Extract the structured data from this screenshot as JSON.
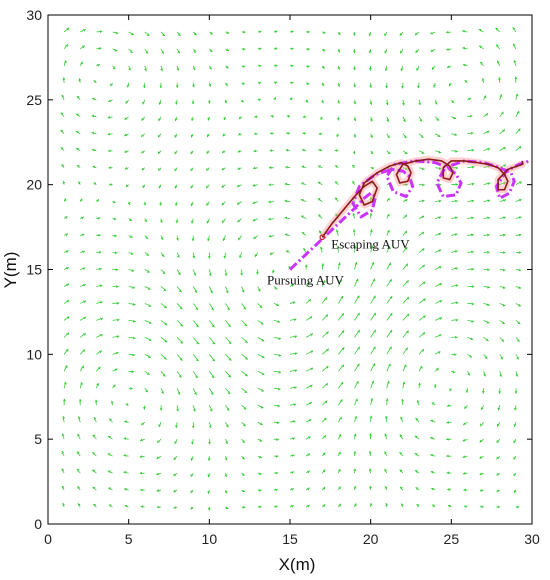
{
  "chart_data": {
    "type": "line",
    "title": "",
    "xlabel": "X(m)",
    "ylabel": "Y(m)",
    "xlim": [
      0,
      30
    ],
    "ylim": [
      0,
      30
    ],
    "xticks": [
      "0",
      "5",
      "10",
      "15",
      "20",
      "25",
      "30"
    ],
    "yticks": [
      "0",
      "5",
      "10",
      "15",
      "20",
      "25",
      "30"
    ],
    "grid": false,
    "colors": {
      "flow_field": "#33cc33",
      "pursuer": "#cc33ff",
      "escaper": "#8b1a1a",
      "axes": "#000000"
    },
    "series": [
      {
        "name": "Pursuing AUV",
        "style": "dash-dot",
        "x": [
          15.0,
          16.0,
          17.0,
          18.0,
          19.0,
          19.6,
          20.0,
          20.3,
          20.1,
          19.4,
          18.9,
          19.3,
          20.3,
          21.3,
          22.0,
          22.4,
          22.6,
          22.2,
          21.4,
          21.0,
          21.5,
          22.8,
          24.0,
          24.8,
          25.3,
          25.6,
          25.3,
          24.5,
          24.1,
          24.6,
          25.8,
          27.0,
          28.0,
          28.7,
          28.9,
          28.6,
          28.0,
          27.8,
          28.4,
          29.2,
          29.6,
          29.8
        ],
        "y": [
          15.0,
          15.9,
          16.8,
          17.7,
          18.6,
          19.2,
          19.5,
          19.3,
          18.5,
          18.1,
          18.9,
          19.9,
          20.6,
          20.9,
          20.8,
          20.5,
          19.9,
          19.3,
          19.6,
          20.5,
          21.2,
          21.4,
          21.3,
          21.0,
          20.6,
          20.1,
          19.4,
          19.3,
          20.1,
          21.0,
          21.4,
          21.3,
          21.0,
          20.7,
          20.2,
          19.5,
          19.2,
          19.9,
          20.8,
          21.2,
          21.3,
          21.4
        ]
      },
      {
        "name": "Escaping AUV",
        "style": "solid",
        "x": [
          17.0,
          17.6,
          18.3,
          19.0,
          19.6,
          20.1,
          20.4,
          20.1,
          19.6,
          19.3,
          19.6,
          20.4,
          21.2,
          21.9,
          22.3,
          22.5,
          22.3,
          21.8,
          21.6,
          22.0,
          22.8,
          23.6,
          24.4,
          24.9,
          25.1,
          24.9,
          24.5,
          24.5,
          25.0,
          25.8,
          26.6,
          27.3,
          27.9,
          28.3,
          28.5,
          28.3,
          27.9,
          27.9,
          28.5,
          29.1,
          29.4,
          29.4
        ],
        "y": [
          16.9,
          17.7,
          18.5,
          19.3,
          19.9,
          20.2,
          19.8,
          19.0,
          18.8,
          19.4,
          20.1,
          20.7,
          21.1,
          21.3,
          21.1,
          20.7,
          20.2,
          20.1,
          20.6,
          21.2,
          21.4,
          21.5,
          21.4,
          21.1,
          20.7,
          20.3,
          20.4,
          21.0,
          21.4,
          21.4,
          21.3,
          21.2,
          21.0,
          20.6,
          20.2,
          19.7,
          19.7,
          20.3,
          20.9,
          21.1,
          21.2,
          21.4
        ]
      }
    ],
    "flow_field": {
      "type": "quiver",
      "x_grid": [
        1,
        2,
        3,
        4,
        5,
        6,
        7,
        8,
        9,
        10,
        11,
        12,
        13,
        14,
        15,
        16,
        17,
        18,
        19,
        20,
        21,
        22,
        23,
        24,
        25,
        26,
        27,
        28,
        29
      ],
      "y_grid": [
        1,
        2,
        3,
        4,
        5,
        6,
        7,
        8,
        9,
        10,
        11,
        12,
        13,
        14,
        15,
        16,
        17,
        18,
        19,
        20,
        21,
        22,
        23,
        24,
        25,
        26,
        27,
        28,
        29
      ]
    },
    "annotations": [
      {
        "text": "Escaping AUV",
        "x": 17.0,
        "y": 16.9
      },
      {
        "text": "Pursuing AUV",
        "x": 15.0,
        "y": 15.0
      }
    ]
  }
}
